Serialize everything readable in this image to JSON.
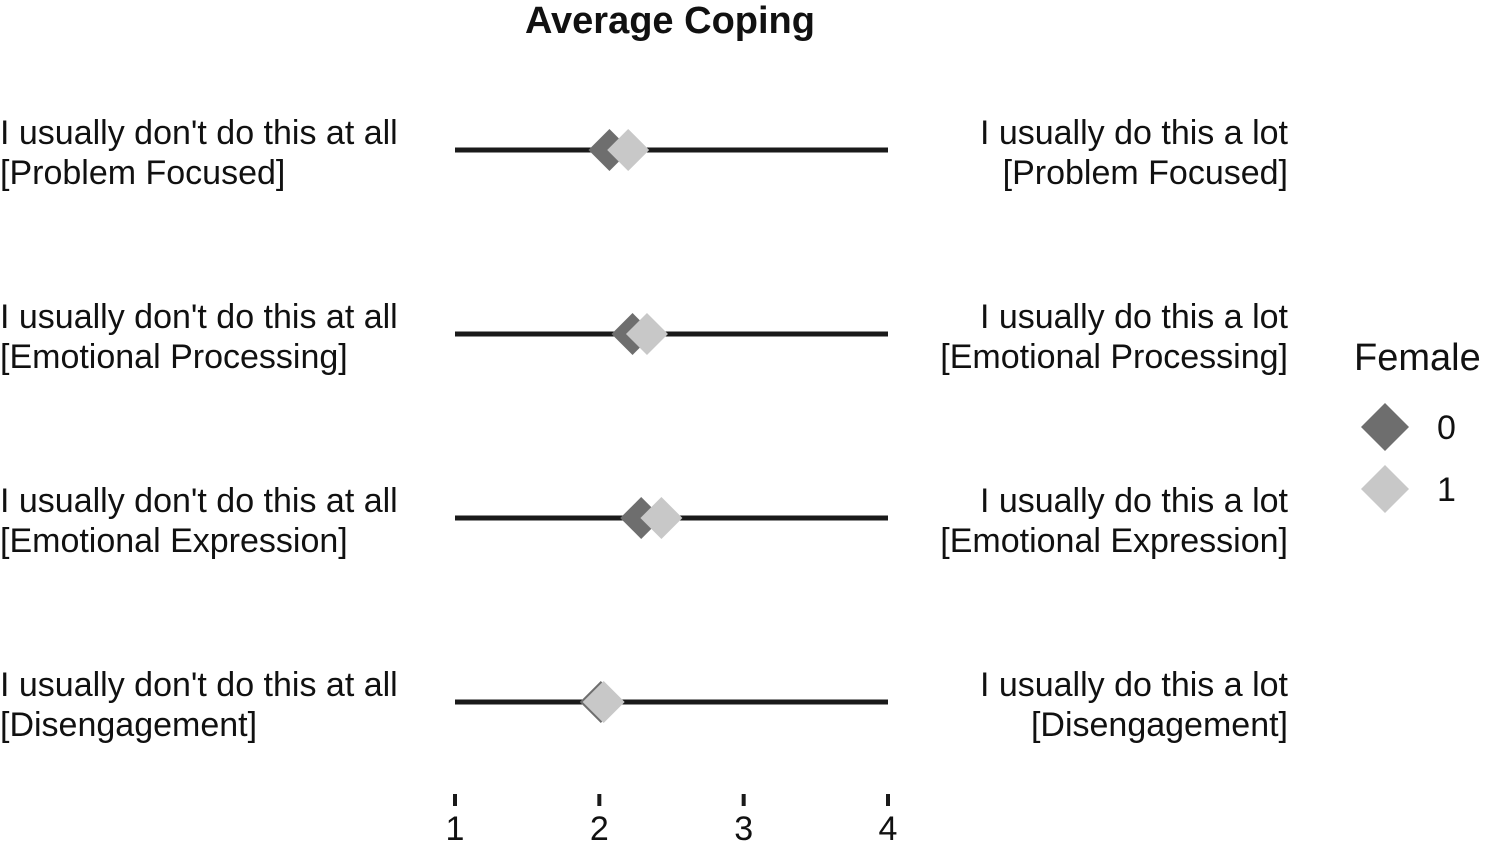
{
  "chart_data": {
    "type": "scatter",
    "title": "Average Coping",
    "xlim": [
      1,
      4
    ],
    "x_ticks": [
      "1",
      "2",
      "3",
      "4"
    ],
    "grid": false,
    "legend_position": "right",
    "legend": {
      "title": "Female",
      "entries": [
        {
          "label": "0",
          "color": "#6e6e6e"
        },
        {
          "label": "1",
          "color": "#c8c8c8"
        }
      ]
    },
    "rows": [
      {
        "left_label": "I usually don't do this at all",
        "left_sub": "[Problem Focused]",
        "right_label": "I usually do this a lot",
        "right_sub": "[Problem Focused]"
      },
      {
        "left_label": "I usually don't do this at all",
        "left_sub": "[Emotional Processing]",
        "right_label": "I usually do this a lot",
        "right_sub": "[Emotional Processing]"
      },
      {
        "left_label": "I usually don't do this at all",
        "left_sub": "[Emotional Expression]",
        "right_label": "I usually do this a lot",
        "right_sub": "[Emotional Expression]"
      },
      {
        "left_label": "I usually don't do this at all",
        "left_sub": "[Disengagement]",
        "right_label": "I usually do this a lot",
        "right_sub": "[Disengagement]"
      }
    ],
    "series": [
      {
        "name": "0",
        "color": "#6e6e6e",
        "values": [
          2.07,
          2.23,
          2.29,
          2.01
        ]
      },
      {
        "name": "1",
        "color": "#c8c8c8",
        "values": [
          2.2,
          2.33,
          2.43,
          2.03
        ]
      }
    ]
  }
}
